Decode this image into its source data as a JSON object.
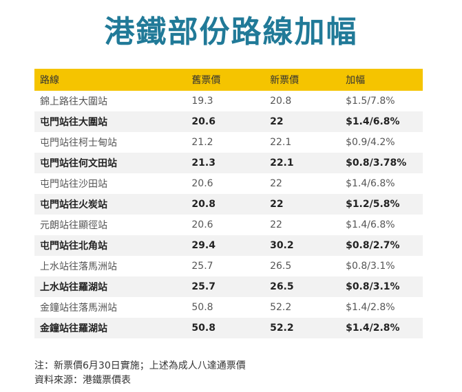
{
  "title": "港鐵部份路線加幅",
  "table": {
    "headers": [
      "路線",
      "舊票價",
      "新票價",
      "加幅"
    ],
    "rows": [
      [
        "錦上路往大圍站",
        "19.3",
        "20.8",
        "$1.5/7.8%"
      ],
      [
        "屯門站往大圍站",
        "20.6",
        "22",
        "$1.4/6.8%"
      ],
      [
        "屯門站往柯士甸站",
        "21.2",
        "22.1",
        "$0.9/4.2%"
      ],
      [
        "屯門站往何文田站",
        "21.3",
        "22.1",
        "$0.8/3.78%"
      ],
      [
        "屯門站往沙田站",
        "20.6",
        "22",
        "$1.4/6.8%"
      ],
      [
        "屯門站往火炭站",
        "20.8",
        "22",
        "$1.2/5.8%"
      ],
      [
        "元朗站往顯徑站",
        "20.6",
        "22",
        "$1.4/6.8%"
      ],
      [
        "屯門站往北角站",
        "29.4",
        "30.2",
        "$0.8/2.7%"
      ],
      [
        "上水站往落馬洲站",
        "25.7",
        "26.5",
        "$0.8/3.1%"
      ],
      [
        "上水站往羅湖站",
        "25.7",
        "26.5",
        "$0.8/3.1%"
      ],
      [
        "金鐘站往落馬洲站",
        "50.8",
        "52.2",
        "$1.4/2.8%"
      ],
      [
        "金鐘站往羅湖站",
        "50.8",
        "52.2",
        "$1.4/2.8%"
      ]
    ]
  },
  "notes": {
    "line1": "注：新票價6月30日實施；上述為成人八達通票價",
    "line2": "資料來源：港鐵票價表"
  },
  "colors": {
    "title": "#217a98",
    "header_bg": "#f5c400",
    "stripe_bg": "#f2f2f2"
  }
}
